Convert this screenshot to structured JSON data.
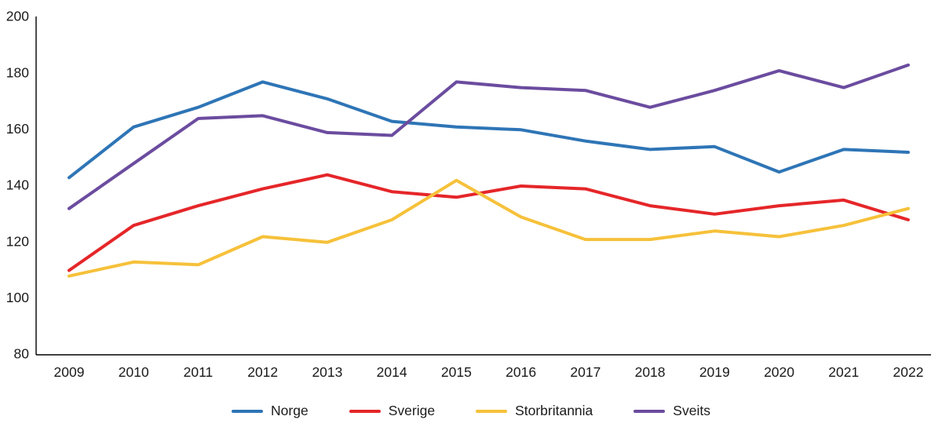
{
  "chart_data": {
    "type": "line",
    "title": "",
    "xlabel": "",
    "ylabel": "",
    "categories": [
      "2009",
      "2010",
      "2011",
      "2012",
      "2013",
      "2014",
      "2015",
      "2016",
      "2017",
      "2018",
      "2019",
      "2020",
      "2021",
      "2022"
    ],
    "series": [
      {
        "name": "Norge",
        "color": "#2e75b6",
        "values": [
          143,
          161,
          168,
          177,
          171,
          163,
          161,
          160,
          156,
          153,
          154,
          145,
          153,
          152
        ]
      },
      {
        "name": "Sverige",
        "color": "#e52629",
        "values": [
          110,
          126,
          133,
          139,
          144,
          138,
          136,
          140,
          139,
          133,
          130,
          133,
          135,
          128
        ]
      },
      {
        "name": "Storbritannia",
        "color": "#f6c13a",
        "values": [
          108,
          113,
          112,
          122,
          120,
          128,
          142,
          129,
          121,
          121,
          124,
          122,
          126,
          132
        ]
      },
      {
        "name": "Sveits",
        "color": "#6b4c9f",
        "values": [
          132,
          148,
          164,
          165,
          159,
          158,
          177,
          175,
          174,
          168,
          174,
          181,
          175,
          183
        ]
      }
    ],
    "ylim": [
      80,
      200
    ],
    "yticks": [
      80,
      100,
      120,
      140,
      160,
      180,
      200
    ],
    "grid": false,
    "legend_position": "bottom",
    "axis_color": "#000000",
    "text_color": "#1a1a1a",
    "line_width": 4
  }
}
